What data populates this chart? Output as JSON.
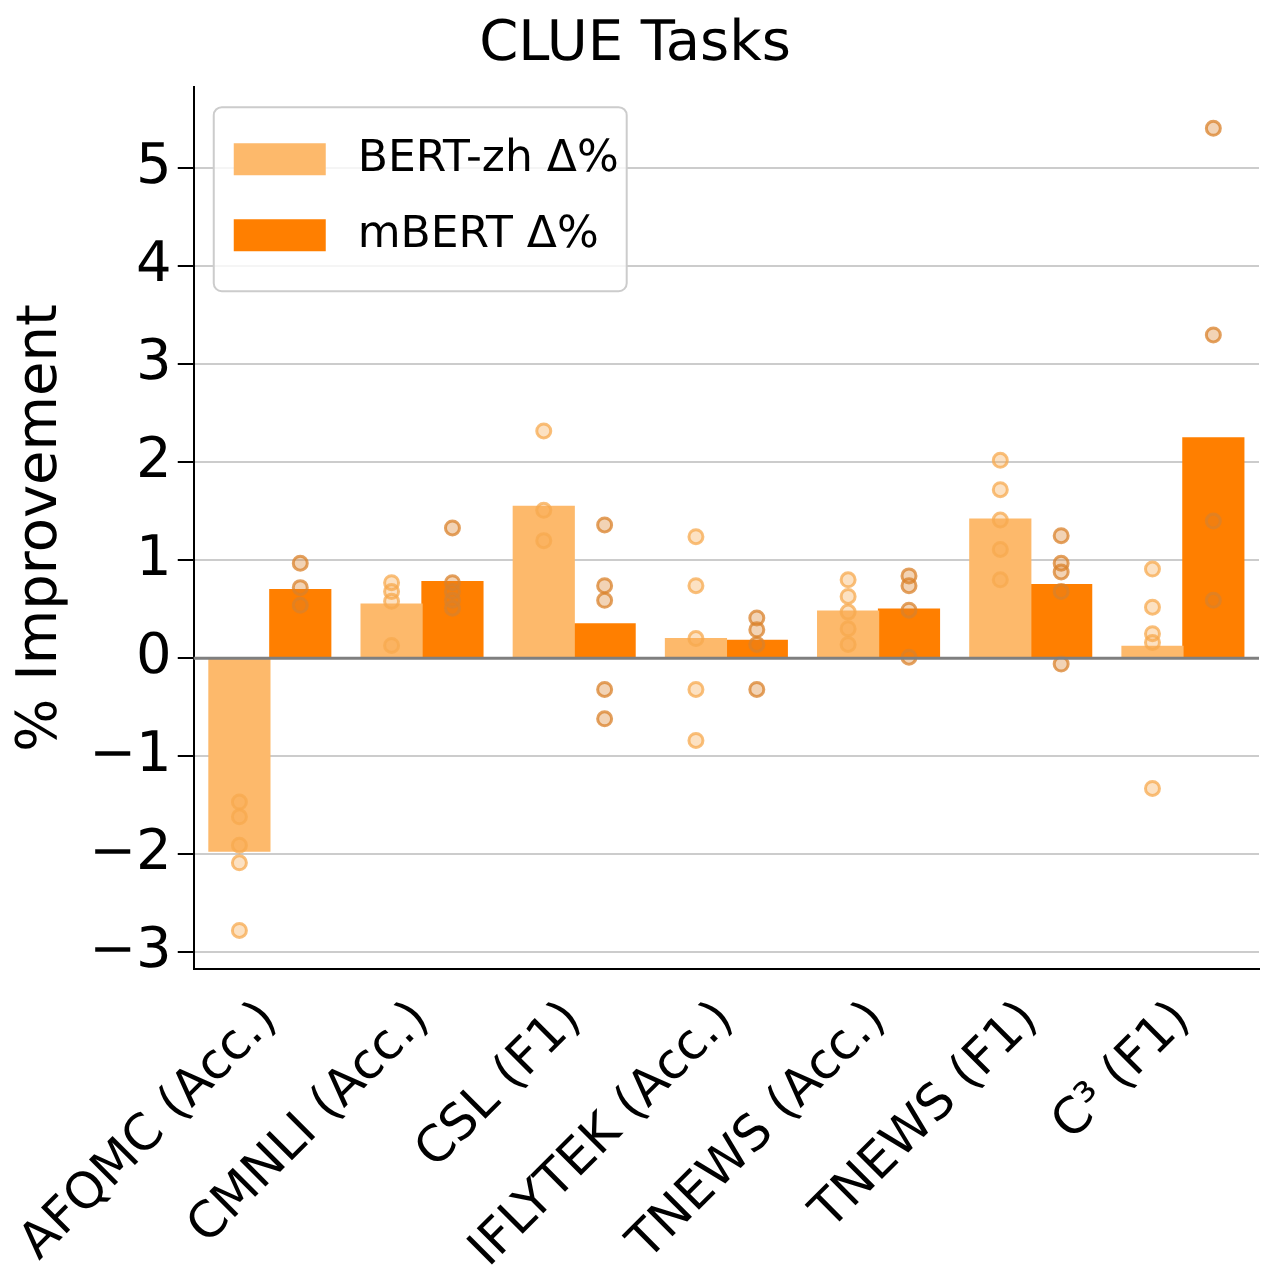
{
  "chart_data": {
    "type": "bar",
    "title": "CLUE Tasks",
    "ylabel": "% Improvement",
    "categories": [
      "AFQMC (Acc.)",
      "CMNLI (Acc.)",
      "CSL (F1)",
      "IFLYTEK (Acc.)",
      "TNEWS (Acc.)",
      "TNEWS (F1)",
      "C³ (F1)"
    ],
    "series": [
      {
        "name": "BERT-zh Δ%",
        "color": "#fdb96b",
        "values": [
          -1.97,
          0.55,
          1.55,
          0.2,
          0.48,
          1.42,
          0.12
        ]
      },
      {
        "name": "mBERT Δ%",
        "color": "#ff7f00",
        "values": [
          0.7,
          0.78,
          0.35,
          0.18,
          0.5,
          0.75,
          2.25
        ]
      },
      {
        "type": "scatter",
        "color": "#f7a94f",
        "x": [
          "AFQMC (Acc.)",
          "AFQMC (Acc.)",
          "AFQMC (Acc.)",
          "AFQMC (Acc.)",
          "AFQMC (Acc.)",
          "CMNLI (Acc.)",
          "CMNLI (Acc.)",
          "CMNLI (Acc.)",
          "CMNLI (Acc.)",
          "CSL (F1)",
          "CSL (F1)",
          "CSL (F1)",
          "IFLYTEK (Acc.)",
          "IFLYTEK (Acc.)",
          "IFLYTEK (Acc.)",
          "IFLYTEK (Acc.)",
          "IFLYTEK (Acc.)",
          "TNEWS (Acc.)",
          "TNEWS (Acc.)",
          "TNEWS (Acc.)",
          "TNEWS (Acc.)",
          "TNEWS (Acc.)",
          "TNEWS (F1)",
          "TNEWS (F1)",
          "TNEWS (F1)",
          "TNEWS (F1)",
          "TNEWS (F1)",
          "C³ (F1)",
          "C³ (F1)",
          "C³ (F1)",
          "C³ (F1)",
          "C³ (F1)"
        ],
        "values": [
          -1.47,
          -1.62,
          -1.91,
          -2.09,
          -2.78,
          0.77,
          0.68,
          0.58,
          0.13,
          2.32,
          1.51,
          1.2,
          1.24,
          0.74,
          0.2,
          -0.32,
          -0.84,
          0.8,
          0.63,
          0.47,
          0.3,
          0.14,
          2.02,
          1.72,
          1.41,
          1.11,
          0.8,
          0.91,
          0.52,
          0.25,
          0.16,
          -1.33
        ]
      },
      {
        "type": "scatter",
        "color": "#d9822b",
        "x": [
          "AFQMC (Acc.)",
          "AFQMC (Acc.)",
          "AFQMC (Acc.)",
          "CMNLI (Acc.)",
          "CMNLI (Acc.)",
          "CMNLI (Acc.)",
          "CMNLI (Acc.)",
          "CMNLI (Acc.)",
          "CSL (F1)",
          "CSL (F1)",
          "CSL (F1)",
          "CSL (F1)",
          "CSL (F1)",
          "IFLYTEK (Acc.)",
          "IFLYTEK (Acc.)",
          "IFLYTEK (Acc.)",
          "IFLYTEK (Acc.)",
          "TNEWS (Acc.)",
          "TNEWS (Acc.)",
          "TNEWS (Acc.)",
          "TNEWS (Acc.)",
          "TNEWS (F1)",
          "TNEWS (F1)",
          "TNEWS (F1)",
          "TNEWS (F1)",
          "TNEWS (F1)",
          "C³ (F1)",
          "C³ (F1)",
          "C³ (F1)",
          "C³ (F1)",
          "C³ (F1)"
        ],
        "values": [
          0.97,
          0.72,
          0.54,
          1.33,
          0.77,
          0.68,
          0.59,
          0.51,
          1.36,
          0.74,
          0.59,
          -0.32,
          -0.62,
          0.41,
          0.29,
          0.14,
          -0.32,
          0.84,
          0.74,
          0.49,
          0.01,
          1.25,
          0.97,
          0.88,
          0.68,
          -0.06,
          5.41,
          3.3,
          1.4,
          0.59,
          null
        ]
      }
    ],
    "ylim": [
      -3.17,
      5.83
    ],
    "yticks": [
      -3,
      -2,
      -1,
      0,
      1,
      2,
      3,
      4,
      5
    ],
    "grid": "y",
    "legend": "top left",
    "ref_lines": [
      {
        "axis": "y",
        "value": 0,
        "color": "#7f7f7f"
      }
    ],
    "marker": "circle"
  }
}
